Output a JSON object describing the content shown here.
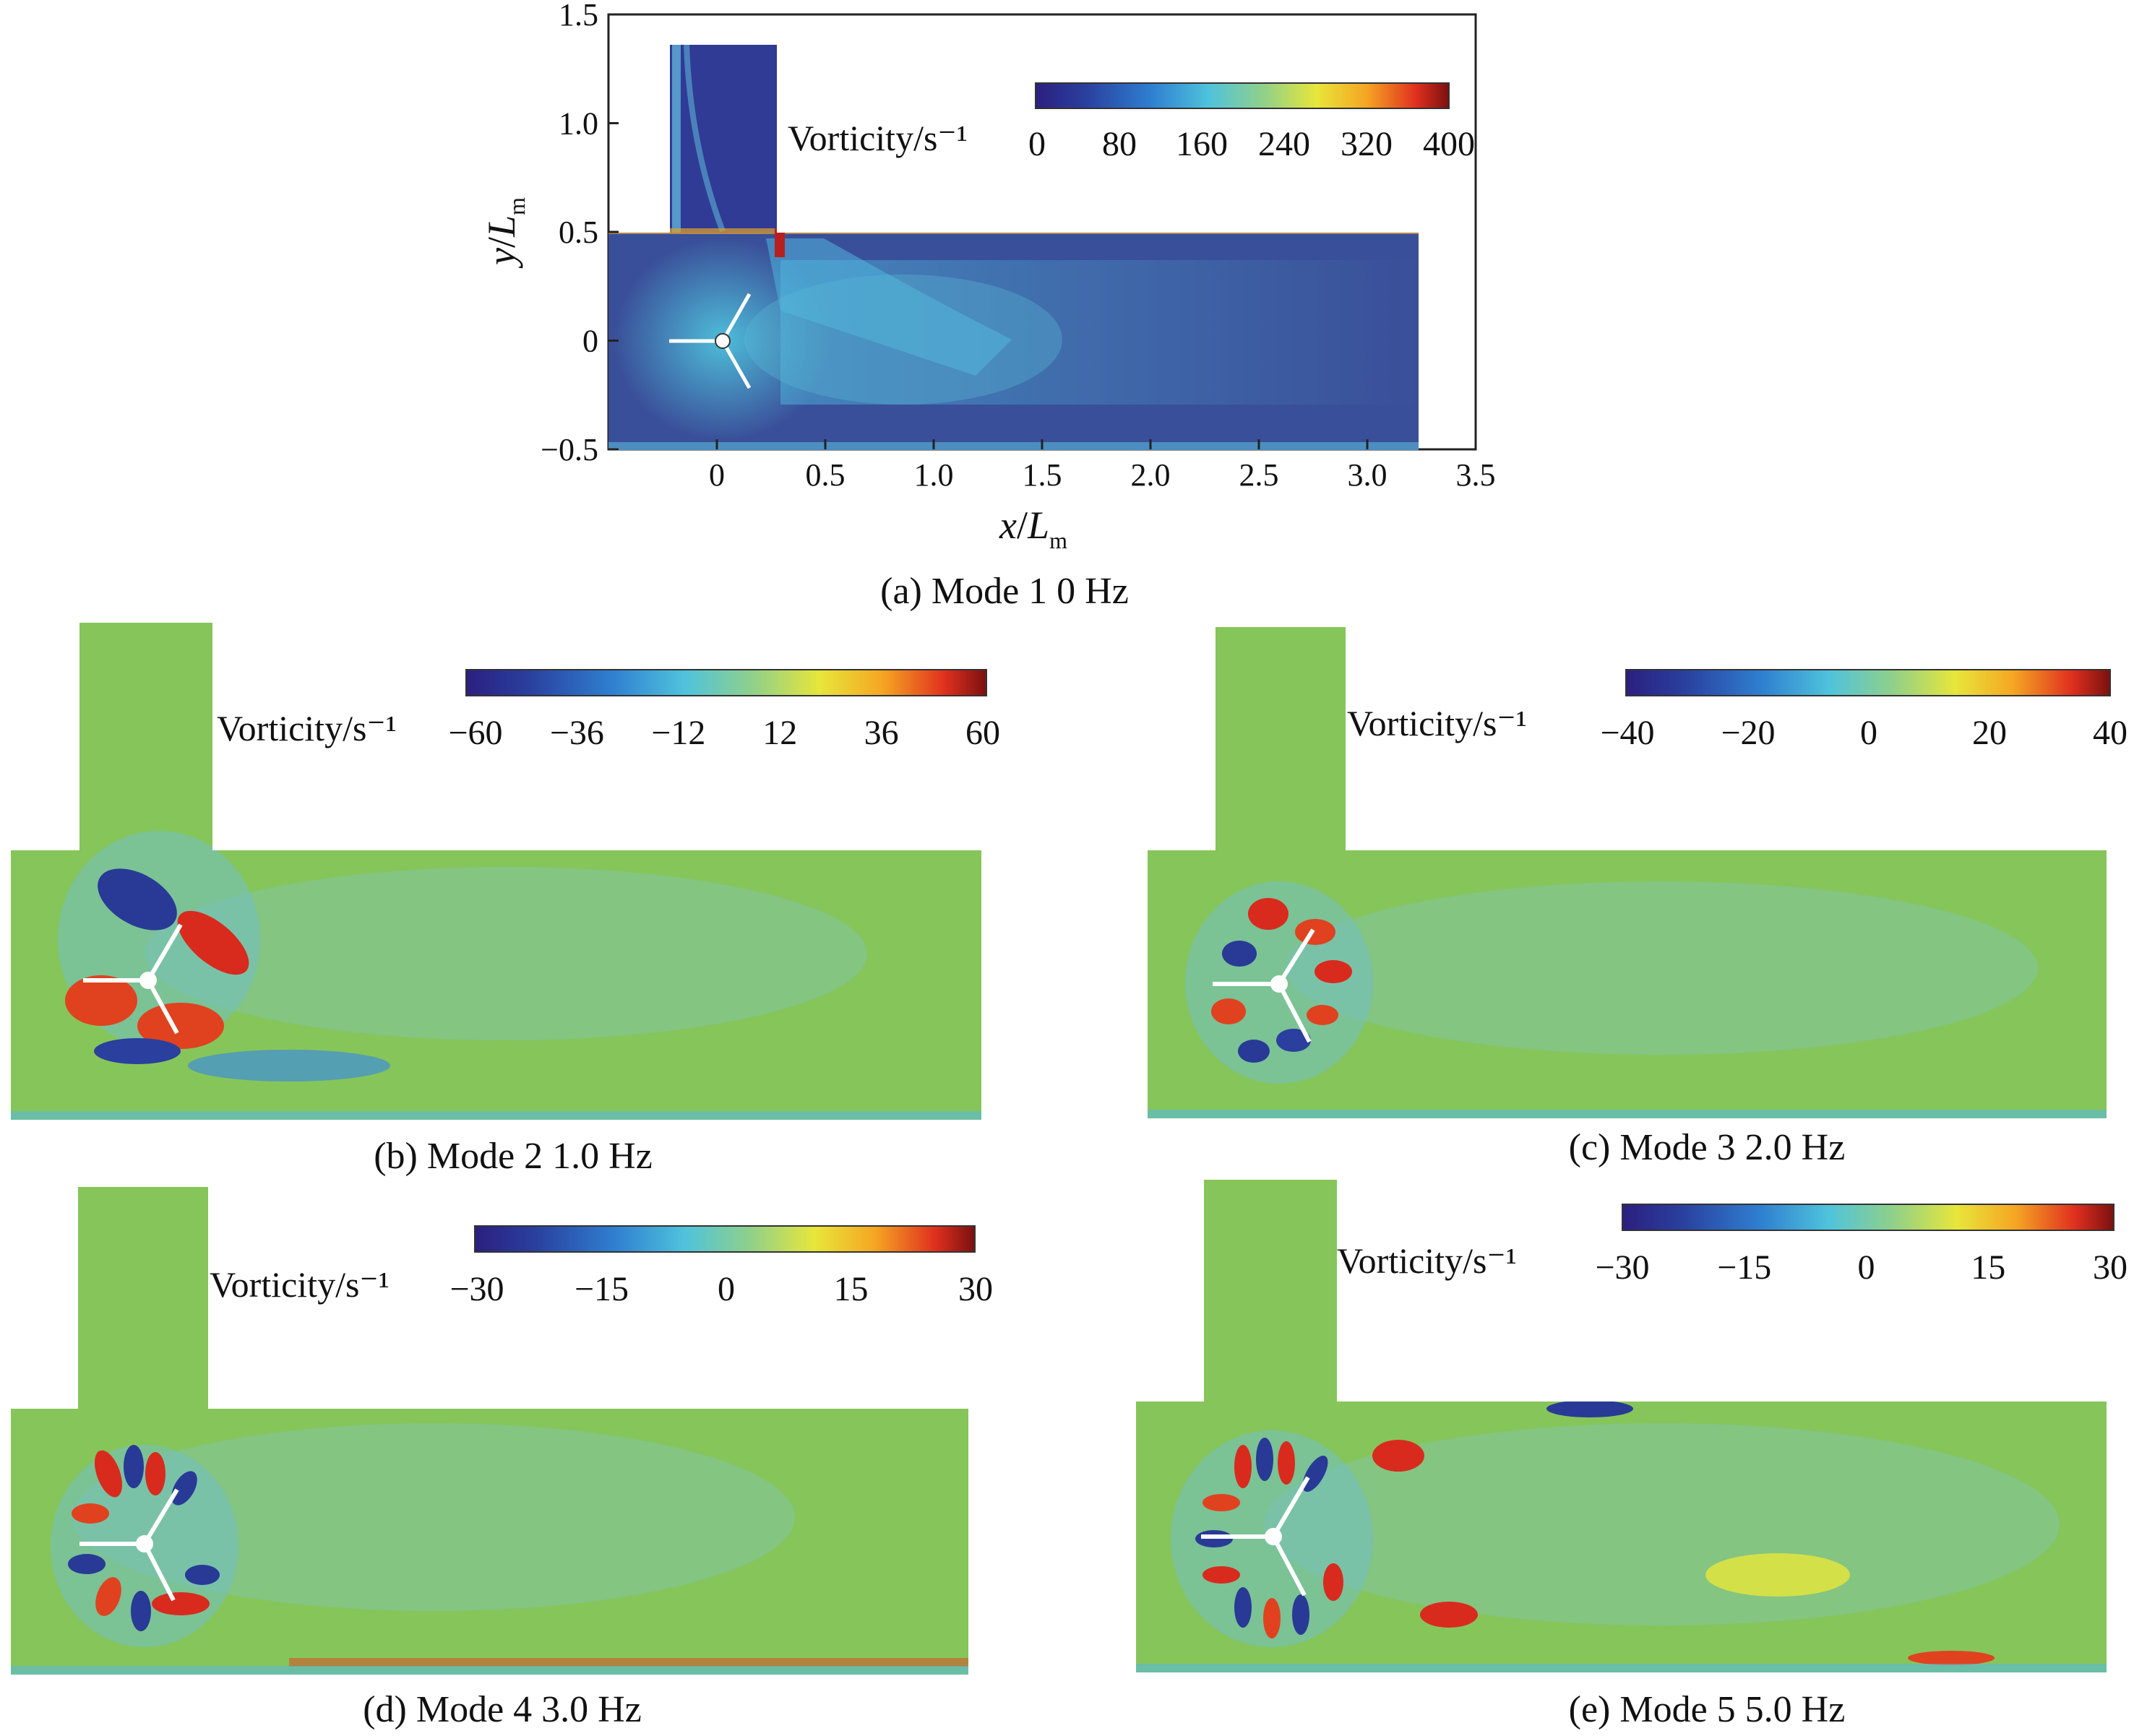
{
  "chart_data": [
    {
      "type": "heatmap",
      "panel": "a",
      "caption": "(a)  Mode 1    0 Hz",
      "colorbar_title": "Vorticity/s⁻¹",
      "colorbar_ticks": [
        "0",
        "80",
        "160",
        "240",
        "320",
        "400"
      ],
      "colorbar_range": [
        0,
        400
      ],
      "xlabel_var": "x",
      "xlabel_sub": "m",
      "ylabel_var": "y",
      "ylabel_sub": "m",
      "label_symbol": "L",
      "xticks": [
        "0",
        "0.5",
        "1.0",
        "1.5",
        "2.0",
        "2.5",
        "3.0",
        "3.5"
      ],
      "yticks": [
        "1.5",
        "1.0",
        "0.5",
        "0",
        "−0.5"
      ],
      "xlim": [
        -0.5,
        3.5
      ],
      "ylim": [
        -0.5,
        1.5
      ],
      "frequency_hz": 0,
      "mode": 1
    },
    {
      "type": "heatmap",
      "panel": "b",
      "caption": "(b) Mode 2    1.0 Hz",
      "colorbar_title": "Vorticity/s⁻¹",
      "colorbar_ticks": [
        "−60",
        "−36",
        "−12",
        "12",
        "36",
        "60"
      ],
      "colorbar_range": [
        -60,
        60
      ],
      "frequency_hz": 1.0,
      "mode": 2
    },
    {
      "type": "heatmap",
      "panel": "c",
      "caption": "(c)  Mode 3    2.0 Hz",
      "colorbar_title": "Vorticity/s⁻¹",
      "colorbar_ticks": [
        "−40",
        "−20",
        "0",
        "20",
        "40"
      ],
      "colorbar_range": [
        -40,
        40
      ],
      "frequency_hz": 2.0,
      "mode": 3
    },
    {
      "type": "heatmap",
      "panel": "d",
      "caption": "(d) Mode 4    3.0 Hz",
      "colorbar_title": "Vorticity/s⁻¹",
      "colorbar_ticks": [
        "−30",
        "−15",
        "0",
        "15",
        "30"
      ],
      "colorbar_range": [
        -30,
        30
      ],
      "frequency_hz": 3.0,
      "mode": 4
    },
    {
      "type": "heatmap",
      "panel": "e",
      "caption": "(e)  Mode 5    5.0 Hz",
      "colorbar_title": "Vorticity/s⁻¹",
      "colorbar_ticks": [
        "−30",
        "−15",
        "0",
        "15",
        "30"
      ],
      "colorbar_range": [
        -30,
        30
      ],
      "frequency_hz": 5.0,
      "mode": 5
    }
  ],
  "colormap": {
    "name": "jet",
    "stops": [
      "#2b1f7f",
      "#2a3f9e",
      "#2f7fd0",
      "#4fc3dc",
      "#8fd08a",
      "#e7e63a",
      "#f5a623",
      "#e0301e",
      "#7a1010"
    ],
    "mid_green": "#86c55a",
    "bg_blue": "#3a4f99"
  }
}
